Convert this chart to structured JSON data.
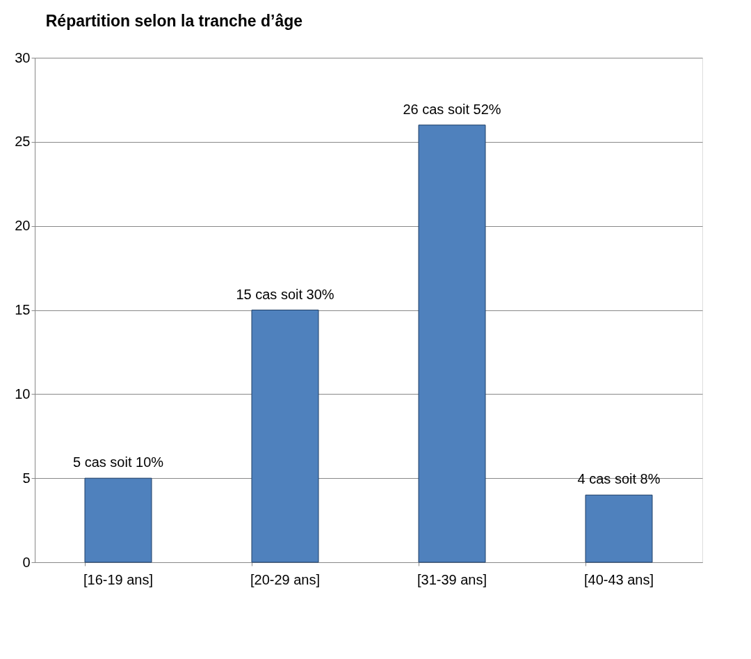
{
  "chart_data": {
    "type": "bar",
    "title": "Répartition selon la tranche d’âge",
    "categories": [
      "[16-19 ans]",
      "[20-29 ans]",
      "[31-39 ans]",
      "[40-43 ans]"
    ],
    "values": [
      5,
      15,
      26,
      4
    ],
    "value_labels": [
      "5 cas soit 10%",
      "15 cas soit 30%",
      "26 cas soit 52%",
      "4 cas soit 8%"
    ],
    "color": "#4f81bd",
    "ylim": [
      0,
      30
    ],
    "yticks": [
      0,
      5,
      10,
      15,
      20,
      25,
      30
    ],
    "grid": "y"
  }
}
